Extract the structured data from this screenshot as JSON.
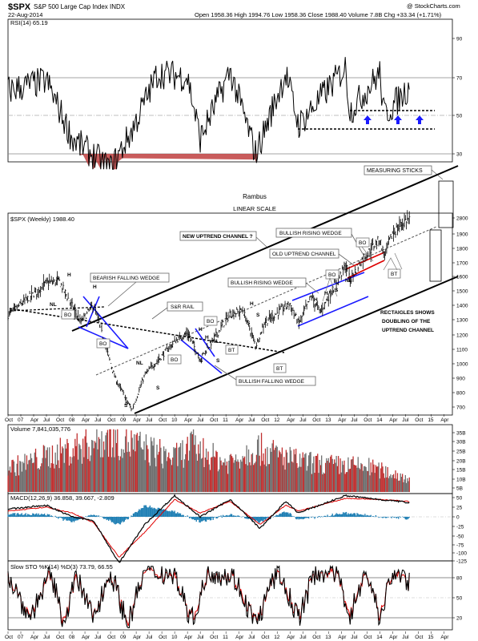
{
  "header": {
    "symbol": "$SPX",
    "name": "S&P 500 Large Cap Index INDX",
    "date": "22-Aug-2014",
    "quote": "Open 1958.36  High 1994.76  Low 1958.36  Close 1988.40  Volume 7.8B  Chg +33.34 (+1.71%)",
    "watermark": "@ StockCharts.com"
  },
  "rsi": {
    "label": "RSI(14) 65.19",
    "levels": [
      "90",
      "70",
      "50",
      "30"
    ]
  },
  "annotations": {
    "rambus": "Rambus",
    "linear_scale": "LINEAR SCALE",
    "measuring_sticks": "MEASURING STICKS",
    "new_uptrend_channel": "NEW UPTREND CHANNEL ?",
    "bullish_rising_wedge_red": "BULLISH RISING WEDGE",
    "old_uptrend_channel": "OLD UPTREND CHANNEL",
    "bullish_rising_wedge_blue": "BULLISH RISING WEDGE",
    "bearish_falling_wedge": "BEARISH FALLING WEDGE",
    "sr_rail": "S&R RAIL",
    "bullish_falling_wedge": "BULLISH FALLING WEDGE",
    "rectangles_1": "RECTAIGLES SHOWS",
    "rectangles_2": "DOUBLING OF THE",
    "rectangles_3": "UPTREND CHANNEL",
    "boxes": [
      "BO",
      "BO",
      "BO",
      "BT",
      "BO",
      "BT",
      "BO",
      "BO",
      "BT"
    ],
    "pattern_letters": [
      "H",
      "H",
      "H",
      "NL",
      "NL",
      "S",
      "S",
      "S",
      "H",
      "H",
      "S",
      "S",
      "NL",
      "H",
      "S",
      "S",
      "H",
      "H",
      "NL",
      "S"
    ]
  },
  "price": {
    "label": "$SPX (Weekly) 1988.40",
    "levels": [
      "2800",
      "1900",
      "1800",
      "1700",
      "1600",
      "1500",
      "1400",
      "1300",
      "1200",
      "1100",
      "1000",
      "900",
      "800",
      "700"
    ]
  },
  "x_axis": {
    "labels": [
      "Oct",
      "07",
      "Apr",
      "Jul",
      "Oct",
      "08",
      "Apr",
      "Jul",
      "Oct",
      "09",
      "Apr",
      "Jul",
      "Oct",
      "10",
      "Apr",
      "Jul",
      "Oct",
      "11",
      "Apr",
      "Jul",
      "Oct",
      "12",
      "Apr",
      "Jul",
      "Oct",
      "13",
      "Apr",
      "Jul",
      "Oct",
      "14",
      "Apr",
      "Jul",
      "Oct",
      "15",
      "Apr"
    ]
  },
  "volume": {
    "label": "Volume 7,841,035,776",
    "levels": [
      "35B",
      "30B",
      "25B",
      "20B",
      "15B",
      "10B",
      "5B"
    ]
  },
  "macd": {
    "label": "MACD(12,26,9) 36.858, 39.667, -2.809",
    "levels": [
      "50",
      "25",
      "0",
      "-25",
      "-50",
      "-75",
      "-100",
      "-125"
    ]
  },
  "sto": {
    "label": "Slow STO %K(14) %D(3) 73.79, 66.55",
    "levels": [
      "80",
      "50",
      "20"
    ]
  },
  "colors": {
    "price_bar": "#000000",
    "pattern_blue": "#1a1aff",
    "wedge_red": "#dd0000",
    "rsi_oversold": "#c04040",
    "volume_red": "#c03030",
    "volume_gray": "#707070",
    "macd_hist": "#1f7fb4",
    "signal_red": "#e00000"
  },
  "chart_data": [
    {
      "type": "line",
      "title": "$SPX (Weekly) 1988.40",
      "ylabel": "",
      "ylim": [
        650,
        2000
      ],
      "x": [
        "2006-10",
        "2007-07",
        "2007-10",
        "2008-03",
        "2008-06",
        "2008-11",
        "2009-03",
        "2009-06",
        "2010-01",
        "2010-04",
        "2010-07",
        "2011-02",
        "2011-05",
        "2011-08",
        "2011-10",
        "2012-04",
        "2012-06",
        "2012-09",
        "2012-11",
        "2013-05",
        "2013-06",
        "2013-09",
        "2014-01",
        "2014-02",
        "2014-04",
        "2014-07",
        "2014-08"
      ],
      "series": [
        {
          "values": [
            1330,
            1550,
            1560,
            1280,
            1400,
            900,
            680,
            920,
            1150,
            1210,
            1030,
            1340,
            1360,
            1120,
            1280,
            1410,
            1270,
            1460,
            1350,
            1670,
            1570,
            1720,
            1850,
            1740,
            1890,
            1980,
            1990
          ]
        }
      ]
    },
    {
      "type": "line",
      "title": "RSI(14) 65.19",
      "ylim": [
        20,
        100
      ],
      "x": [
        "2006-10",
        "2007-07",
        "2008-01",
        "2008-10",
        "2009-03",
        "2009-09",
        "2010-04",
        "2010-07",
        "2011-02",
        "2011-08",
        "2012-03",
        "2012-06",
        "2013-05",
        "2013-06",
        "2014-01",
        "2014-02",
        "2014-08"
      ],
      "series": [
        {
          "values": [
            63,
            68,
            38,
            22,
            42,
            72,
            70,
            38,
            73,
            30,
            72,
            45,
            75,
            52,
            72,
            50,
            65
          ]
        }
      ]
    },
    {
      "type": "bar",
      "title": "Volume 7,841,035,776",
      "ylim": [
        0,
        38
      ],
      "x": [
        "2006-10",
        "2007-06",
        "2008-01",
        "2008-10",
        "2009-03",
        "2010-01",
        "2010-05",
        "2011-01",
        "2011-08",
        "2012-06",
        "2013-01",
        "2013-10",
        "2014-08"
      ],
      "series": [
        {
          "values": [
            14,
            20,
            25,
            33,
            28,
            20,
            27,
            17,
            26,
            18,
            16,
            15,
            8
          ]
        }
      ]
    },
    {
      "type": "line",
      "title": "MACD(12,26,9) 36.858, 39.667, -2.809",
      "ylim": [
        -130,
        60
      ],
      "x": [
        "2006-10",
        "2007-07",
        "2008-01",
        "2008-06",
        "2008-12",
        "2009-06",
        "2010-01",
        "2010-07",
        "2011-02",
        "2011-09",
        "2012-03",
        "2012-06",
        "2013-05",
        "2014-01",
        "2014-08"
      ],
      "series": [
        {
          "values": [
            20,
            30,
            0,
            -10,
            -120,
            -20,
            55,
            0,
            45,
            -30,
            40,
            10,
            55,
            45,
            37
          ]
        },
        {
          "values": [
            15,
            25,
            10,
            -15,
            -105,
            -40,
            45,
            10,
            40,
            -20,
            30,
            15,
            48,
            45,
            40
          ]
        }
      ]
    },
    {
      "type": "line",
      "title": "Slow STO %K(14) %D(3) 73.79, 66.55",
      "ylim": [
        0,
        100
      ],
      "x": [
        "2006-10",
        "2007-03",
        "2007-08",
        "2007-11",
        "2008-02",
        "2008-06",
        "2008-10",
        "2009-02",
        "2009-06",
        "2010-01",
        "2010-05",
        "2010-09",
        "2011-03",
        "2011-08",
        "2012-01",
        "2012-06",
        "2012-10",
        "2013-03",
        "2013-06",
        "2013-10",
        "2014-01",
        "2014-04",
        "2014-08"
      ],
      "series": [
        {
          "values": [
            85,
            20,
            85,
            15,
            80,
            20,
            90,
            10,
            90,
            85,
            15,
            90,
            80,
            10,
            90,
            20,
            90,
            85,
            25,
            90,
            20,
            88,
            74
          ]
        },
        {
          "values": [
            80,
            30,
            80,
            25,
            75,
            30,
            85,
            20,
            85,
            80,
            25,
            85,
            78,
            20,
            85,
            30,
            85,
            82,
            35,
            85,
            30,
            85,
            67
          ]
        }
      ]
    }
  ]
}
